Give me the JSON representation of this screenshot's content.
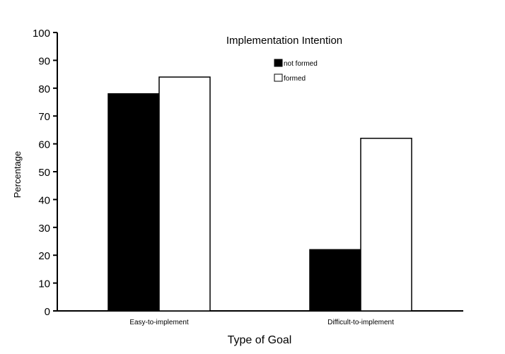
{
  "chart_data": {
    "type": "bar",
    "title": "Implementation Intention",
    "xlabel": "Type of Goal",
    "ylabel": "Percentage",
    "ylim": [
      0,
      100
    ],
    "yticks": [
      0,
      10,
      20,
      30,
      40,
      50,
      60,
      70,
      80,
      90,
      100
    ],
    "categories": [
      "Easy-to-implement",
      "Difficult-to-implement"
    ],
    "series": [
      {
        "name": "not formed",
        "values": [
          78,
          22
        ],
        "color": "#000000"
      },
      {
        "name": "formed",
        "values": [
          84,
          62
        ],
        "color": "#ffffff"
      }
    ],
    "legend_position": "top-right",
    "grid": false
  }
}
